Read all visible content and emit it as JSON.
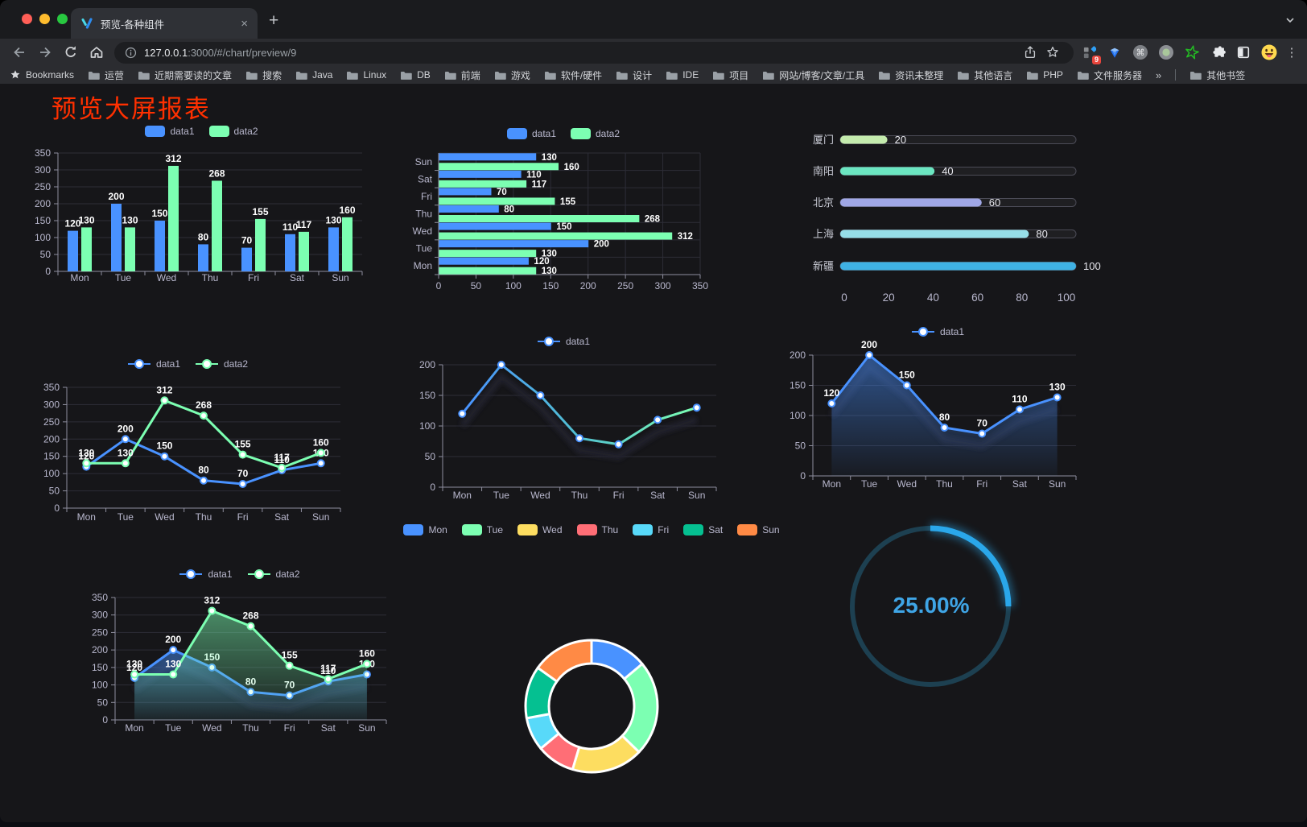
{
  "browser": {
    "tab": {
      "title": "预览-各种组件",
      "close_glyph": "×"
    },
    "new_tab_glyph": "+",
    "address": {
      "host": "127.0.0.1",
      "rest": ":3000/#/chart/preview/9"
    },
    "extensions_badge": "9",
    "bookmarks_bar": {
      "root_label": "Bookmarks",
      "folders": [
        "运营",
        "近期需要读的文章",
        "搜索",
        "Java",
        "Linux",
        "DB",
        "前端",
        "游戏",
        "软件/硬件",
        "设计",
        "IDE",
        "项目",
        "网站/博客/文章/工具",
        "资讯未整理",
        "其他语言",
        "PHP",
        "文件服务器"
      ],
      "overflow_glyph": "»",
      "other_bookmarks_label": "其他书签"
    }
  },
  "page": {
    "title": "预览大屏报表",
    "title_color": "#ff3000",
    "background": "#161619"
  },
  "palette": {
    "axis_label": "#b9b8ce",
    "grid": "#2d2d37",
    "axis_line": "#8e8e9e",
    "value_label": "#ffffff"
  },
  "chart_data": [
    {
      "id": "bar",
      "type": "bar",
      "categories": [
        "Mon",
        "Tue",
        "Wed",
        "Thu",
        "Fri",
        "Sat",
        "Sun"
      ],
      "series": [
        {
          "name": "data1",
          "color": "#4992ff",
          "values": [
            120,
            200,
            150,
            80,
            70,
            110,
            130
          ]
        },
        {
          "name": "data2",
          "color": "#7cffb2",
          "values": [
            130,
            130,
            312,
            268,
            155,
            117,
            160
          ]
        }
      ],
      "ylim": [
        0,
        350
      ],
      "ytick_step": 50,
      "legend_position": "top",
      "grid": true
    },
    {
      "id": "hbar",
      "type": "bar",
      "orientation": "horizontal",
      "categories": [
        "Mon",
        "Tue",
        "Wed",
        "Thu",
        "Fri",
        "Sat",
        "Sun"
      ],
      "series": [
        {
          "name": "data1",
          "color": "#4992ff",
          "values": [
            120,
            200,
            150,
            80,
            70,
            110,
            130
          ]
        },
        {
          "name": "data2",
          "color": "#7cffb2",
          "values": [
            130,
            130,
            312,
            268,
            155,
            117,
            160
          ]
        }
      ],
      "xlim": [
        0,
        350
      ],
      "xtick_step": 50,
      "legend_position": "top",
      "grid": true
    },
    {
      "id": "progress",
      "type": "bar",
      "orientation": "horizontal-progress",
      "rows": [
        {
          "label": "厦门",
          "value": 20,
          "color": "#c4ebad"
        },
        {
          "label": "南阳",
          "value": 40,
          "color": "#6be6c1"
        },
        {
          "label": "北京",
          "value": 60,
          "color": "#a0a7e6"
        },
        {
          "label": "上海",
          "value": 80,
          "color": "#96dee8"
        },
        {
          "label": "新疆",
          "value": 100,
          "color": "#3fb1e3"
        }
      ],
      "xlim": [
        0,
        100
      ],
      "xticks": [
        0,
        20,
        40,
        60,
        80,
        100
      ],
      "grid": false
    },
    {
      "id": "line2",
      "type": "line",
      "categories": [
        "Mon",
        "Tue",
        "Wed",
        "Thu",
        "Fri",
        "Sat",
        "Sun"
      ],
      "series": [
        {
          "name": "data1",
          "color": "#4992ff",
          "values": [
            120,
            200,
            150,
            80,
            70,
            110,
            130
          ]
        },
        {
          "name": "data2",
          "color": "#7cffb2",
          "values": [
            130,
            130,
            312,
            268,
            155,
            117,
            160
          ]
        }
      ],
      "ylim": [
        0,
        350
      ],
      "ytick_step": 50,
      "labels": true,
      "legend_position": "top",
      "grid": true
    },
    {
      "id": "linegrad",
      "type": "line",
      "categories": [
        "Mon",
        "Tue",
        "Wed",
        "Thu",
        "Fri",
        "Sat",
        "Sun"
      ],
      "series": [
        {
          "name": "data1",
          "color": "#4992ff",
          "gradient": [
            "#4992ff",
            "#52c0cf",
            "#7cffb2"
          ],
          "values": [
            120,
            200,
            150,
            80,
            70,
            110,
            130
          ],
          "shadow": true
        }
      ],
      "ylim": [
        0,
        200
      ],
      "ytick_step": 50,
      "labels": false,
      "legend_position": "top",
      "grid": true
    },
    {
      "id": "area1",
      "type": "area",
      "categories": [
        "Mon",
        "Tue",
        "Wed",
        "Thu",
        "Fri",
        "Sat",
        "Sun"
      ],
      "series": [
        {
          "name": "data1",
          "color": "#4992ff",
          "values": [
            120,
            200,
            150,
            80,
            70,
            110,
            130
          ],
          "area": true,
          "shadow": true
        }
      ],
      "ylim": [
        0,
        200
      ],
      "ytick_step": 50,
      "labels": true,
      "legend_position": "top",
      "grid": true
    },
    {
      "id": "area2",
      "type": "area",
      "categories": [
        "Mon",
        "Tue",
        "Wed",
        "Thu",
        "Fri",
        "Sat",
        "Sun"
      ],
      "series": [
        {
          "name": "data1",
          "color": "#4992ff",
          "values": [
            120,
            200,
            150,
            80,
            70,
            110,
            130
          ],
          "area": true,
          "shadow": true
        },
        {
          "name": "data2",
          "color": "#7cffb2",
          "values": [
            130,
            130,
            312,
            268,
            155,
            117,
            160
          ],
          "area": true
        }
      ],
      "ylim": [
        0,
        350
      ],
      "ytick_step": 50,
      "labels": true,
      "legend_position": "top",
      "grid": true
    },
    {
      "id": "donut",
      "type": "pie",
      "subtype": "donut",
      "legend_position": "top",
      "items": [
        {
          "name": "Mon",
          "value": 120,
          "color": "#4992ff"
        },
        {
          "name": "Tue",
          "value": 200,
          "color": "#7cffb2"
        },
        {
          "name": "Wed",
          "value": 150,
          "color": "#fddd60"
        },
        {
          "name": "Thu",
          "value": 80,
          "color": "#ff6e76"
        },
        {
          "name": "Fri",
          "value": 70,
          "color": "#58d9f9"
        },
        {
          "name": "Sat",
          "value": 110,
          "color": "#05c091"
        },
        {
          "name": "Sun",
          "value": 130,
          "color": "#ff8a45"
        }
      ]
    },
    {
      "id": "gauge",
      "type": "gauge",
      "value": 25,
      "max": 100,
      "center_label": "25.00%",
      "color": "#2aa7ea",
      "track_color": "#1d4051",
      "label_color": "#3fa5e6"
    }
  ]
}
